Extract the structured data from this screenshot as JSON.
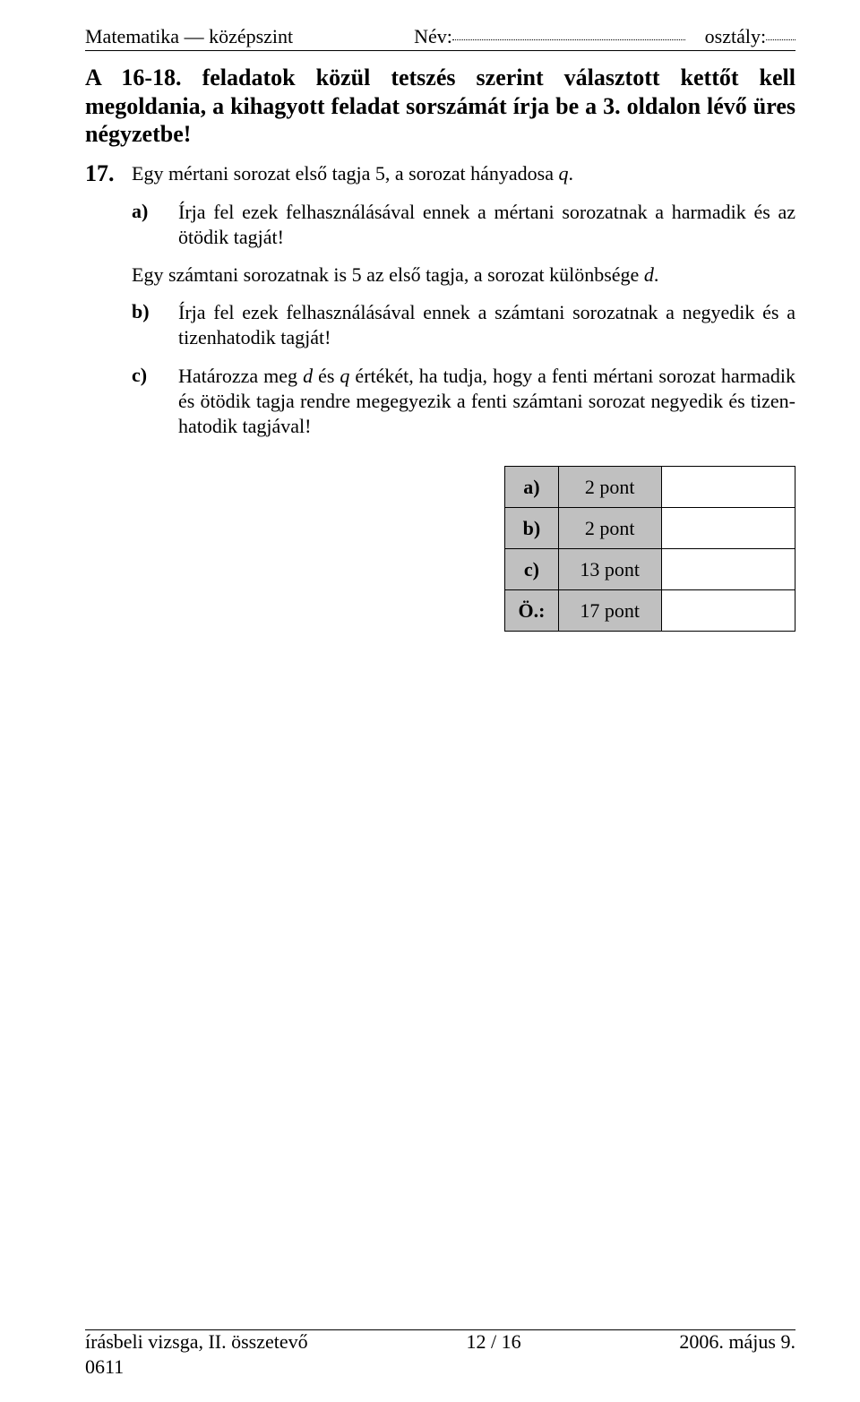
{
  "header": {
    "subject_level": "Matematika — középszint",
    "name_label": "Név:",
    "class_label": "osztály:"
  },
  "instruction_text": "A 16-18. feladatok közül tetszés szerint választott kettőt kell megoldania, a kihagyott feladat sorszámát írja be a 3. oldalon lévő üres négyzetbe!",
  "question": {
    "number": "17.",
    "intro": "Egy mértani sorozat első tagja 5, a sorozat hányadosa  ",
    "intro_var": "q",
    "intro_end": ".",
    "a_label": "a)",
    "a_text": "Írja fel ezek felhasználásával ennek a mértani sorozatnak a harmadik és az ötödik tagját!",
    "mid_text_1": "Egy számtani sorozatnak is 5 az első tagja, a sorozat különbsége  ",
    "mid_var": "d",
    "mid_text_2": ".",
    "b_label": "b)",
    "b_text": "Írja fel ezek felhasználásával ennek a számtani sorozatnak a negyedik és a tizenhatodik tagját!",
    "c_label": "c)",
    "c_text_1": "Határozza meg  ",
    "c_var1": "d",
    "c_text_2": " és  ",
    "c_var2": "q",
    "c_text_3": "  értékét, ha tudja, hogy a fenti mértani sorozat harmadik és ötödik tagja rendre megegyezik a fenti számtani sorozat negyedik és tizen­hatodik tagjával!"
  },
  "points": {
    "rows": [
      {
        "label": "a)",
        "value": "2 pont"
      },
      {
        "label": "b)",
        "value": "2 pont"
      },
      {
        "label": "c)",
        "value": "13 pont"
      },
      {
        "label": "Ö.:",
        "value": "17 pont"
      }
    ]
  },
  "footer": {
    "left": "írásbeli vizsga, II. összetevő",
    "center": "12 / 16",
    "right": "2006. május 9.",
    "code": "0611"
  }
}
